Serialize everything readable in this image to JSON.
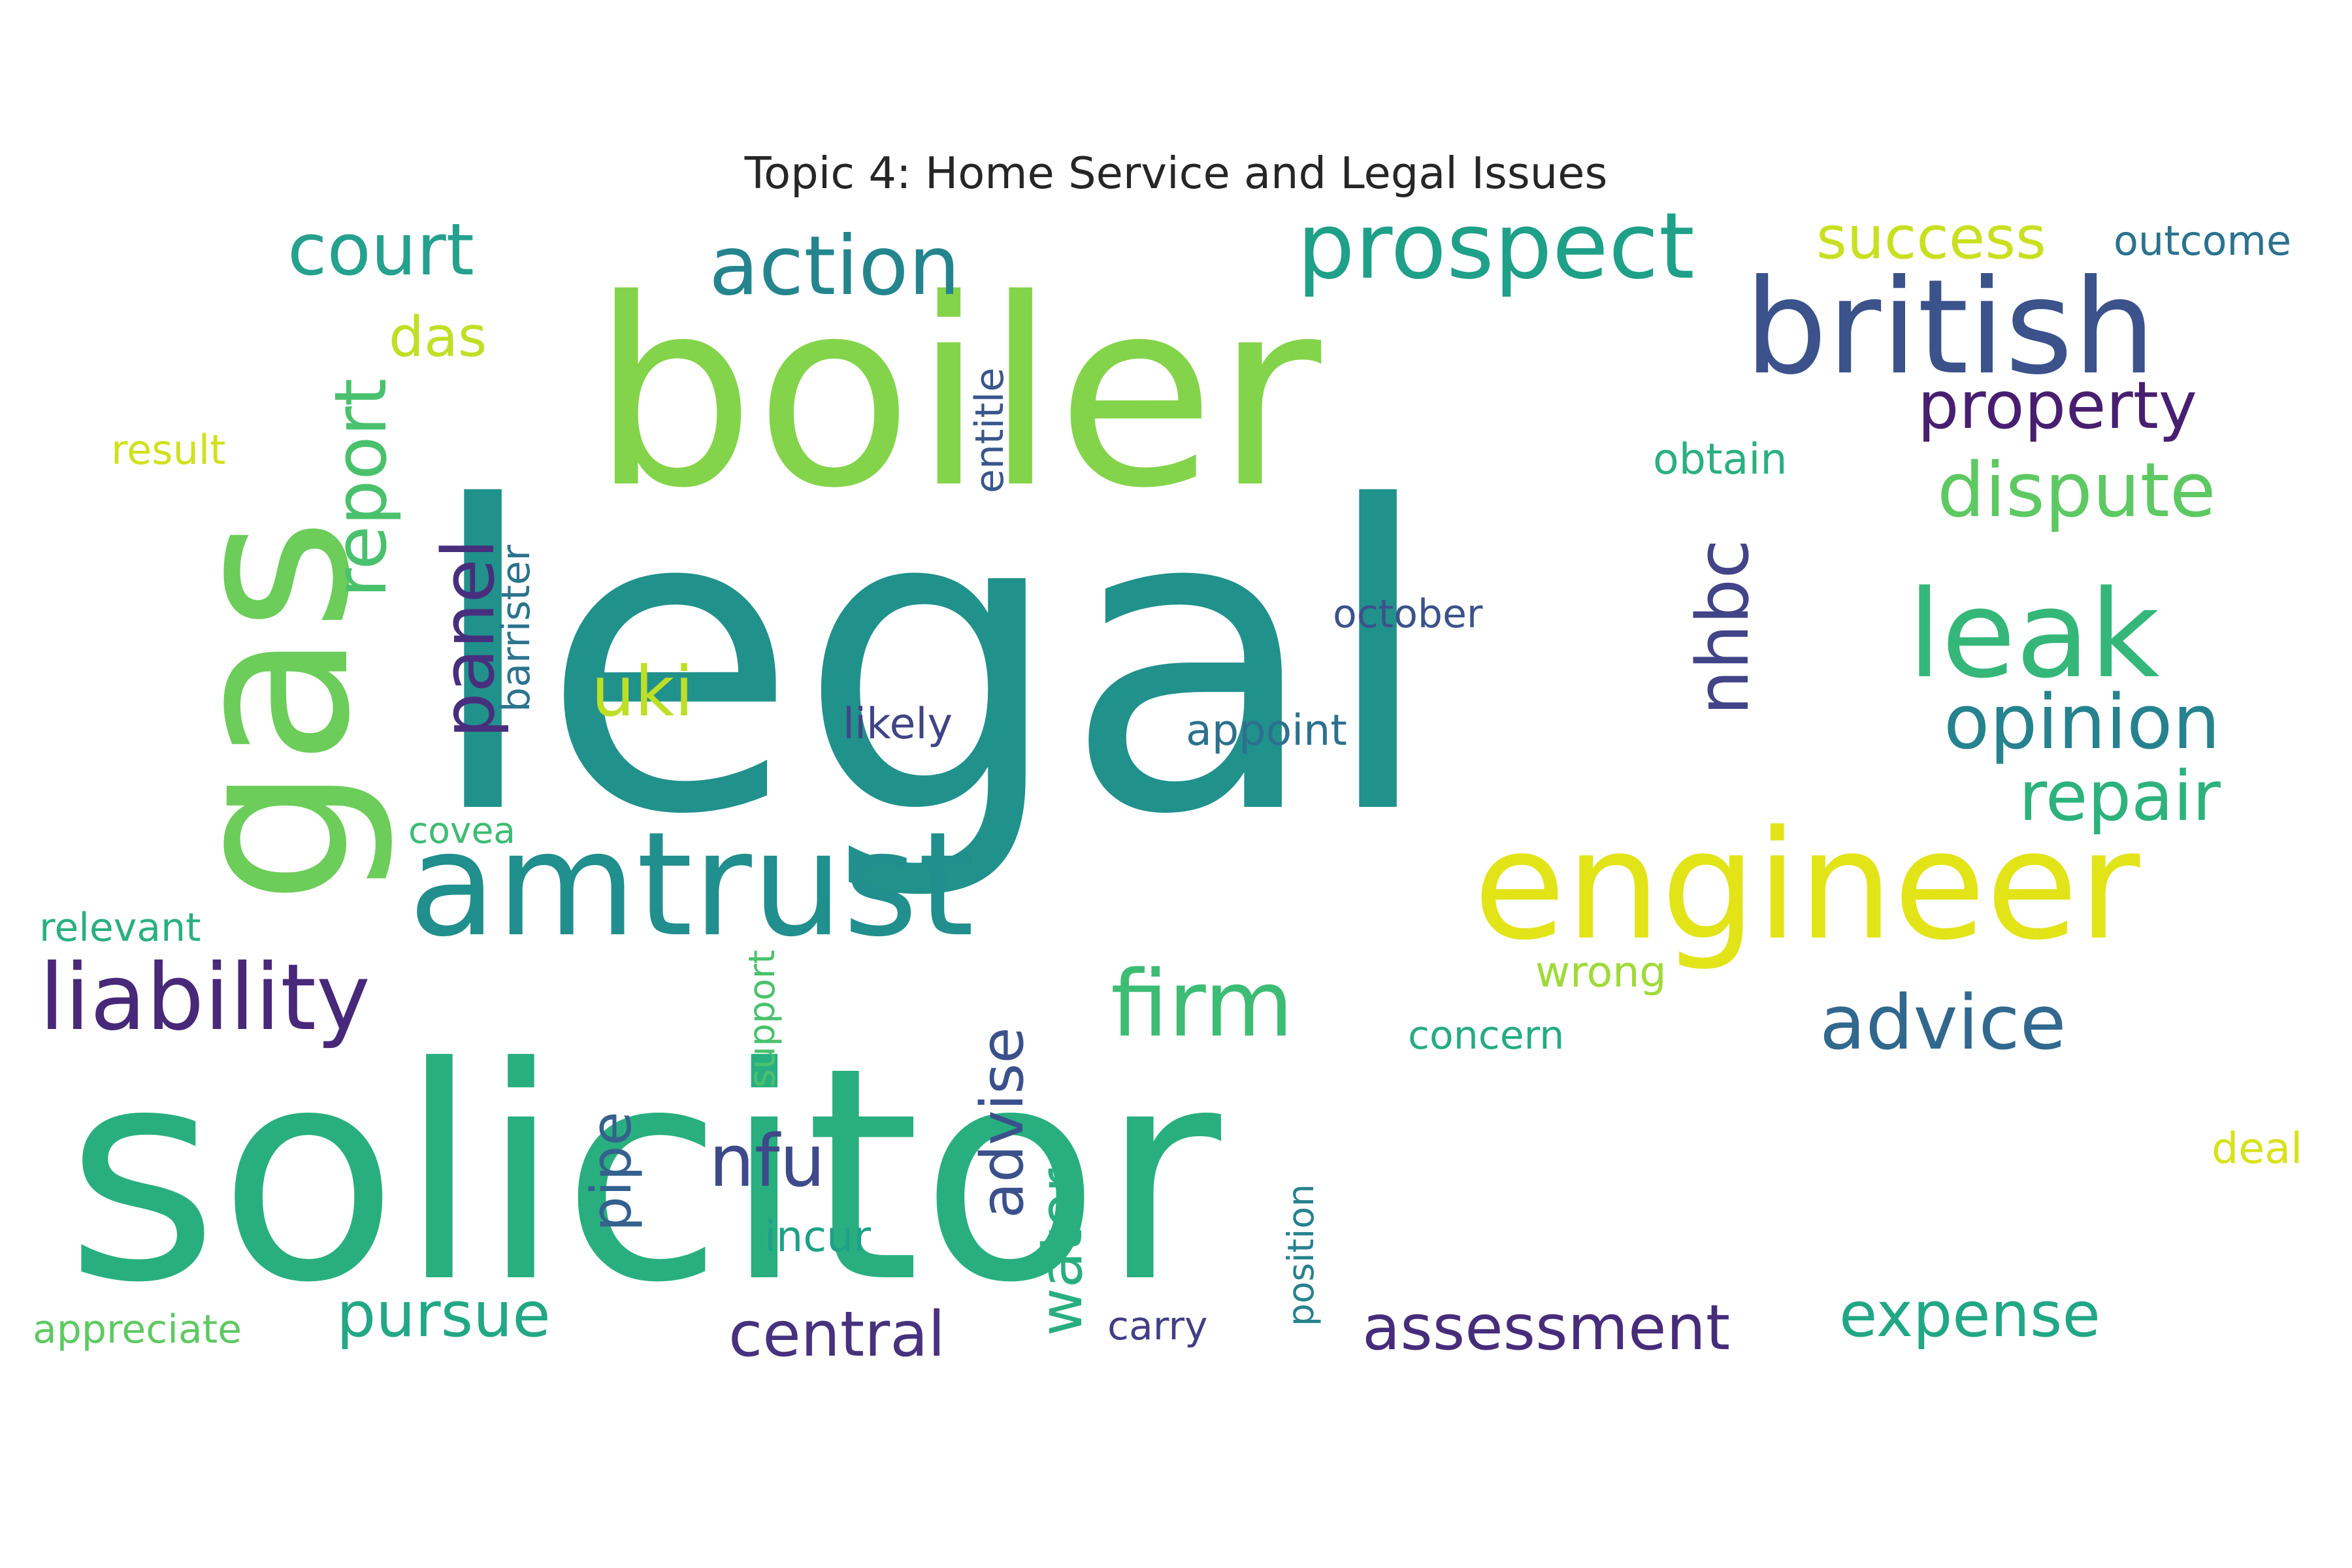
{
  "title": "Topic 4: Home Service and Legal Issues",
  "words": [
    {
      "text": "legal",
      "color": "#21918c",
      "orientation": "horizontal"
    },
    {
      "text": "solicitor",
      "color": "#29af7f",
      "orientation": "horizontal"
    },
    {
      "text": "boiler",
      "color": "#84d44b",
      "orientation": "horizontal"
    },
    {
      "text": "gas",
      "color": "#6ccd5a",
      "orientation": "vertical"
    },
    {
      "text": "amtrust",
      "color": "#218f8d",
      "orientation": "horizontal"
    },
    {
      "text": "engineer",
      "color": "#e2e418",
      "orientation": "horizontal"
    },
    {
      "text": "british",
      "color": "#3b528b",
      "orientation": "horizontal"
    },
    {
      "text": "leak",
      "color": "#35b779",
      "orientation": "horizontal"
    },
    {
      "text": "prospect",
      "color": "#1fa088",
      "orientation": "horizontal"
    },
    {
      "text": "action",
      "color": "#25858e",
      "orientation": "horizontal"
    },
    {
      "text": "firm",
      "color": "#3dbc74",
      "orientation": "horizontal"
    },
    {
      "text": "liability",
      "color": "#482878",
      "orientation": "horizontal"
    },
    {
      "text": "court",
      "color": "#25a18e",
      "orientation": "horizontal"
    },
    {
      "text": "report",
      "color": "#4ac16d",
      "orientation": "vertical"
    },
    {
      "text": "panel",
      "color": "#472f7d",
      "orientation": "vertical"
    },
    {
      "text": "dispute",
      "color": "#5ec962",
      "orientation": "horizontal"
    },
    {
      "text": "opinion",
      "color": "#26828e",
      "orientation": "horizontal"
    },
    {
      "text": "repair",
      "color": "#2db27d",
      "orientation": "horizontal"
    },
    {
      "text": "property",
      "color": "#481f70",
      "orientation": "horizontal"
    },
    {
      "text": "success",
      "color": "#c8e020",
      "orientation": "horizontal"
    },
    {
      "text": "nhbc",
      "color": "#414487",
      "orientation": "vertical"
    },
    {
      "text": "advice",
      "color": "#31688e",
      "orientation": "horizontal"
    },
    {
      "text": "uki",
      "color": "#bddf26",
      "orientation": "horizontal"
    },
    {
      "text": "nfu",
      "color": "#3e4a89",
      "orientation": "horizontal"
    },
    {
      "text": "advise",
      "color": "#3b518b",
      "orientation": "vertical"
    },
    {
      "text": "water",
      "color": "#29af7f",
      "orientation": "vertical"
    },
    {
      "text": "pipe",
      "color": "#34618d",
      "orientation": "vertical"
    },
    {
      "text": "pursue",
      "color": "#22a884",
      "orientation": "horizontal"
    },
    {
      "text": "central",
      "color": "#46327e",
      "orientation": "horizontal"
    },
    {
      "text": "assessment",
      "color": "#472c7a",
      "orientation": "horizontal"
    },
    {
      "text": "expense",
      "color": "#22a785",
      "orientation": "horizontal"
    },
    {
      "text": "das",
      "color": "#c0df25",
      "orientation": "horizontal"
    },
    {
      "text": "outcome",
      "color": "#2c728e",
      "orientation": "horizontal"
    },
    {
      "text": "result",
      "color": "#d0e11c",
      "orientation": "horizontal"
    },
    {
      "text": "entitle",
      "color": "#39568c",
      "orientation": "vertical"
    },
    {
      "text": "obtain",
      "color": "#2ab07f",
      "orientation": "horizontal"
    },
    {
      "text": "barrister",
      "color": "#2c738e",
      "orientation": "vertical"
    },
    {
      "text": "october",
      "color": "#3b528b",
      "orientation": "horizontal"
    },
    {
      "text": "likely",
      "color": "#414487",
      "orientation": "horizontal"
    },
    {
      "text": "appoint",
      "color": "#2d708e",
      "orientation": "horizontal"
    },
    {
      "text": "covea",
      "color": "#3dbc74",
      "orientation": "horizontal"
    },
    {
      "text": "relevant",
      "color": "#2ab07f",
      "orientation": "horizontal"
    },
    {
      "text": "wrong",
      "color": "#a0da39",
      "orientation": "horizontal"
    },
    {
      "text": "concern",
      "color": "#25ac82",
      "orientation": "horizontal"
    },
    {
      "text": "support",
      "color": "#4ac16d",
      "orientation": "vertical"
    },
    {
      "text": "deal",
      "color": "#d8e219",
      "orientation": "horizontal"
    },
    {
      "text": "incur",
      "color": "#1fa088",
      "orientation": "horizontal"
    },
    {
      "text": "position",
      "color": "#26828e",
      "orientation": "vertical"
    },
    {
      "text": "carry",
      "color": "#433e85",
      "orientation": "horizontal"
    },
    {
      "text": "appreciate",
      "color": "#5ec962",
      "orientation": "horizontal"
    }
  ]
}
